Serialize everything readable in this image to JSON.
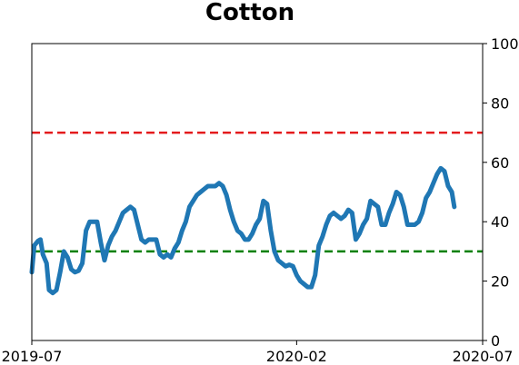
{
  "chart_data": {
    "type": "line",
    "title": "Cotton",
    "xlabel": "",
    "ylabel": "",
    "x_range": [
      "2019-07-01",
      "2020-07-01"
    ],
    "x_ticks": [
      "2019-07",
      "2020-02",
      "2020-07"
    ],
    "x_tick_dates": [
      "2019-07-01",
      "2020-02-01",
      "2020-07-01"
    ],
    "ylim": [
      0,
      100
    ],
    "y_ticks": [
      0,
      20,
      40,
      60,
      80,
      100
    ],
    "y_axis_side": "right",
    "grid": false,
    "legend": "none",
    "reference_lines": [
      {
        "y": 70,
        "color": "#e41a1c",
        "style": "dashed"
      },
      {
        "y": 30,
        "color": "#008000",
        "style": "dashed"
      }
    ],
    "series": [
      {
        "color": "#1f77b4",
        "points": [
          [
            "2019-07-01",
            23
          ],
          [
            "2019-07-03",
            32
          ],
          [
            "2019-07-06",
            33.5
          ],
          [
            "2019-07-08",
            34
          ],
          [
            "2019-07-10",
            29
          ],
          [
            "2019-07-13",
            26
          ],
          [
            "2019-07-15",
            17
          ],
          [
            "2019-07-18",
            16
          ],
          [
            "2019-07-21",
            17
          ],
          [
            "2019-07-24",
            23
          ],
          [
            "2019-07-27",
            30
          ],
          [
            "2019-07-30",
            28
          ],
          [
            "2019-08-02",
            24
          ],
          [
            "2019-08-05",
            23
          ],
          [
            "2019-08-08",
            23.5
          ],
          [
            "2019-08-11",
            26
          ],
          [
            "2019-08-14",
            37
          ],
          [
            "2019-08-17",
            40
          ],
          [
            "2019-08-20",
            40
          ],
          [
            "2019-08-23",
            40
          ],
          [
            "2019-08-26",
            33
          ],
          [
            "2019-08-29",
            27
          ],
          [
            "2019-09-01",
            32
          ],
          [
            "2019-09-04",
            35
          ],
          [
            "2019-09-07",
            37
          ],
          [
            "2019-09-10",
            40
          ],
          [
            "2019-09-13",
            43
          ],
          [
            "2019-09-16",
            44
          ],
          [
            "2019-09-19",
            45
          ],
          [
            "2019-09-22",
            44
          ],
          [
            "2019-09-25",
            39
          ],
          [
            "2019-09-28",
            34
          ],
          [
            "2019-10-01",
            33
          ],
          [
            "2019-10-04",
            34
          ],
          [
            "2019-10-07",
            34
          ],
          [
            "2019-10-10",
            34
          ],
          [
            "2019-10-13",
            29
          ],
          [
            "2019-10-16",
            28
          ],
          [
            "2019-10-19",
            29
          ],
          [
            "2019-10-22",
            28
          ],
          [
            "2019-10-25",
            31
          ],
          [
            "2019-10-28",
            33
          ],
          [
            "2019-10-31",
            37
          ],
          [
            "2019-11-03",
            40
          ],
          [
            "2019-11-06",
            45
          ],
          [
            "2019-11-09",
            47
          ],
          [
            "2019-11-12",
            49
          ],
          [
            "2019-11-15",
            50
          ],
          [
            "2019-11-18",
            51
          ],
          [
            "2019-11-21",
            52
          ],
          [
            "2019-11-24",
            52
          ],
          [
            "2019-11-27",
            52
          ],
          [
            "2019-11-30",
            53
          ],
          [
            "2019-12-03",
            52
          ],
          [
            "2019-12-06",
            49
          ],
          [
            "2019-12-09",
            44
          ],
          [
            "2019-12-12",
            40
          ],
          [
            "2019-12-15",
            37
          ],
          [
            "2019-12-18",
            36
          ],
          [
            "2019-12-21",
            34
          ],
          [
            "2019-12-24",
            34
          ],
          [
            "2019-12-27",
            36
          ],
          [
            "2019-12-30",
            39
          ],
          [
            "2020-01-02",
            41
          ],
          [
            "2020-01-05",
            47
          ],
          [
            "2020-01-08",
            46
          ],
          [
            "2020-01-11",
            37
          ],
          [
            "2020-01-14",
            30
          ],
          [
            "2020-01-17",
            27
          ],
          [
            "2020-01-20",
            26
          ],
          [
            "2020-01-23",
            25
          ],
          [
            "2020-01-26",
            25.5
          ],
          [
            "2020-01-29",
            25
          ],
          [
            "2020-02-01",
            22
          ],
          [
            "2020-02-04",
            20
          ],
          [
            "2020-02-07",
            19
          ],
          [
            "2020-02-10",
            18
          ],
          [
            "2020-02-13",
            18
          ],
          [
            "2020-02-16",
            22
          ],
          [
            "2020-02-19",
            32
          ],
          [
            "2020-02-22",
            35
          ],
          [
            "2020-02-25",
            39
          ],
          [
            "2020-02-28",
            42
          ],
          [
            "2020-03-02",
            43
          ],
          [
            "2020-03-05",
            42
          ],
          [
            "2020-03-08",
            41
          ],
          [
            "2020-03-11",
            42
          ],
          [
            "2020-03-14",
            44
          ],
          [
            "2020-03-17",
            43
          ],
          [
            "2020-03-20",
            34
          ],
          [
            "2020-03-23",
            36
          ],
          [
            "2020-03-26",
            39
          ],
          [
            "2020-03-29",
            41
          ],
          [
            "2020-04-01",
            47
          ],
          [
            "2020-04-04",
            46
          ],
          [
            "2020-04-07",
            45
          ],
          [
            "2020-04-10",
            39
          ],
          [
            "2020-04-13",
            39
          ],
          [
            "2020-04-16",
            43
          ],
          [
            "2020-04-19",
            46
          ],
          [
            "2020-04-22",
            50
          ],
          [
            "2020-04-25",
            49
          ],
          [
            "2020-04-28",
            45
          ],
          [
            "2020-05-01",
            39
          ],
          [
            "2020-05-04",
            39
          ],
          [
            "2020-05-07",
            39
          ],
          [
            "2020-05-10",
            40
          ],
          [
            "2020-05-13",
            43
          ],
          [
            "2020-05-16",
            48
          ],
          [
            "2020-05-19",
            50
          ],
          [
            "2020-05-22",
            53
          ],
          [
            "2020-05-25",
            56
          ],
          [
            "2020-05-28",
            58
          ],
          [
            "2020-05-31",
            57
          ],
          [
            "2020-06-03",
            52
          ],
          [
            "2020-06-06",
            50
          ],
          [
            "2020-06-08",
            45
          ]
        ]
      }
    ]
  }
}
